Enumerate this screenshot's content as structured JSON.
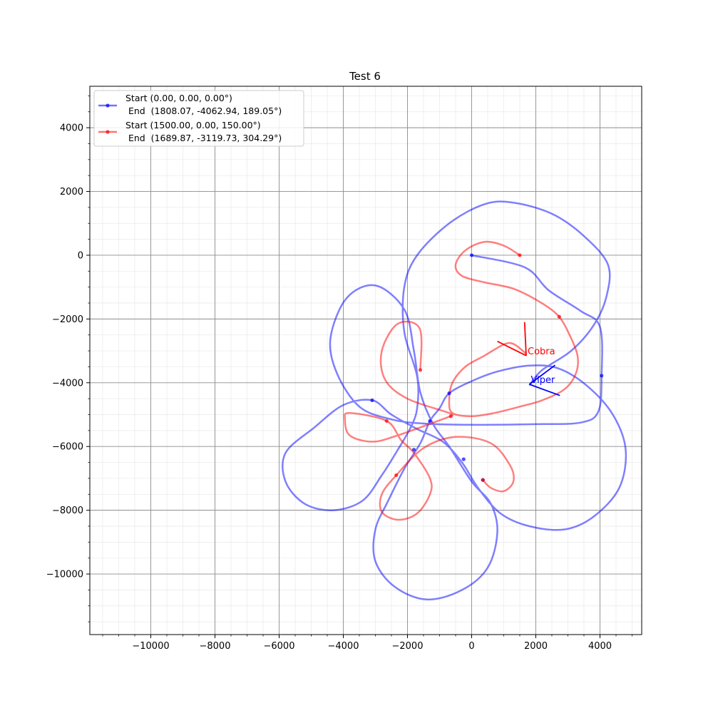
{
  "chart_data": {
    "type": "line",
    "title": "Test 6",
    "xlabel": "",
    "ylabel": "",
    "xlim": [
      -11900,
      5300
    ],
    "ylim": [
      -11900,
      5300
    ],
    "x_ticks": [
      -10000,
      -8000,
      -6000,
      -4000,
      -2000,
      0,
      2000,
      4000
    ],
    "y_ticks": [
      4000,
      2000,
      0,
      -2000,
      -4000,
      -6000,
      -8000,
      -10000
    ],
    "x_tick_labels": [
      "−10000",
      "−8000",
      "−6000",
      "−4000",
      "−2000",
      "0",
      "2000",
      "4000"
    ],
    "y_tick_labels": [
      "4000",
      "2000",
      "0",
      "−2000",
      "−4000",
      "−6000",
      "−8000",
      "−10000"
    ],
    "grid": true,
    "minor_grid": true,
    "legend_position": "top-left",
    "series": [
      {
        "name": "Start (0.00, 0.00, 0.00°)\n End  (1808.07, -4062.94, 189.05°)",
        "legend_line1": "Start (0.00, 0.00, 0.00°)",
        "legend_line2": " End  (1808.07, -4062.94, 189.05°)",
        "color": "#0000ff",
        "points": [
          [
            0,
            0
          ],
          [
            1650,
            -380
          ],
          [
            2400,
            -1100
          ],
          [
            3400,
            -1750
          ],
          [
            4000,
            -2250
          ],
          [
            4050,
            -3780
          ],
          [
            3950,
            -4900
          ],
          [
            3400,
            -5250
          ],
          [
            2000,
            -5300
          ],
          [
            0,
            -5320
          ],
          [
            -1500,
            -5280
          ],
          [
            -2500,
            -5150
          ],
          [
            -3500,
            -4750
          ],
          [
            -4200,
            -3700
          ],
          [
            -4400,
            -2600
          ],
          [
            -3900,
            -1350
          ],
          [
            -3000,
            -950
          ],
          [
            -2100,
            -1700
          ],
          [
            -1800,
            -3000
          ],
          [
            -1600,
            -4300
          ],
          [
            -1200,
            -5300
          ],
          [
            -700,
            -6000
          ],
          [
            0,
            -7100
          ],
          [
            600,
            -7800
          ],
          [
            800,
            -8700
          ],
          [
            500,
            -9800
          ],
          [
            -300,
            -10500
          ],
          [
            -1400,
            -10800
          ],
          [
            -2400,
            -10400
          ],
          [
            -3000,
            -9600
          ],
          [
            -3000,
            -8600
          ],
          [
            -2600,
            -7700
          ],
          [
            -2100,
            -6700
          ],
          [
            -1600,
            -5900
          ],
          [
            -1300,
            -5200
          ],
          [
            -1000,
            -4800
          ],
          [
            -700,
            -4330
          ],
          [
            0,
            -3950
          ],
          [
            800,
            -3650
          ],
          [
            1800,
            -3460
          ],
          [
            2700,
            -3550
          ],
          [
            3600,
            -4100
          ],
          [
            4400,
            -5000
          ],
          [
            4800,
            -6100
          ],
          [
            4600,
            -7300
          ],
          [
            3800,
            -8200
          ],
          [
            2900,
            -8600
          ],
          [
            1800,
            -8500
          ],
          [
            900,
            -8100
          ],
          [
            200,
            -7300
          ],
          [
            -300,
            -6500
          ],
          [
            -900,
            -5850
          ],
          [
            -1700,
            -5450
          ],
          [
            -2500,
            -5000
          ],
          [
            -3100,
            -4550
          ],
          [
            -4000,
            -4700
          ],
          [
            -4900,
            -5400
          ],
          [
            -5800,
            -6200
          ],
          [
            -5800,
            -7100
          ],
          [
            -5200,
            -7800
          ],
          [
            -4300,
            -8000
          ],
          [
            -3400,
            -7700
          ],
          [
            -2800,
            -6900
          ],
          [
            -2300,
            -6100
          ],
          [
            -1900,
            -5400
          ],
          [
            -1700,
            -4800
          ],
          [
            -1700,
            -3800
          ],
          [
            -2100,
            -2400
          ],
          [
            -2100,
            -1000
          ],
          [
            -1700,
            0
          ],
          [
            -700,
            1000
          ],
          [
            400,
            1600
          ],
          [
            1300,
            1650
          ],
          [
            2500,
            1300
          ],
          [
            3500,
            600
          ],
          [
            4250,
            -300
          ],
          [
            4200,
            -1300
          ],
          [
            3800,
            -2200
          ],
          [
            3100,
            -3000
          ],
          [
            2200,
            -3600
          ],
          [
            1808,
            -4063
          ]
        ],
        "markers": [
          [
            0,
            0
          ],
          [
            4050,
            -3780
          ],
          [
            -1300,
            -5200
          ],
          [
            -3100,
            -4550
          ],
          [
            -700,
            -4330
          ],
          [
            -1800,
            -6100
          ],
          [
            -250,
            -6400
          ],
          [
            350,
            -7050
          ]
        ]
      },
      {
        "name": "Start (1500.00, 0.00, 150.00°)\n End  (1689.87, -3119.73, 304.29°)",
        "legend_line1": "Start (1500.00, 0.00, 150.00°)",
        "legend_line2": " End  (1689.87, -3119.73, 304.29°)",
        "color": "#ff0000",
        "points": [
          [
            1500,
            0
          ],
          [
            1000,
            300
          ],
          [
            400,
            420
          ],
          [
            -200,
            150
          ],
          [
            -500,
            -300
          ],
          [
            -300,
            -650
          ],
          [
            400,
            -850
          ],
          [
            1300,
            -1050
          ],
          [
            2100,
            -1450
          ],
          [
            2700,
            -1900
          ],
          [
            3050,
            -2500
          ],
          [
            3300,
            -3150
          ],
          [
            3250,
            -3700
          ],
          [
            2900,
            -4200
          ],
          [
            2200,
            -4550
          ],
          [
            1500,
            -4750
          ],
          [
            700,
            -4950
          ],
          [
            0,
            -5050
          ],
          [
            -600,
            -4950
          ],
          [
            -700,
            -4550
          ],
          [
            -600,
            -4000
          ],
          [
            -200,
            -3500
          ],
          [
            400,
            -3150
          ],
          [
            1000,
            -2800
          ],
          [
            1300,
            -2780
          ],
          [
            1650,
            -3050
          ],
          [
            1690,
            -3120
          ]
        ],
        "markers": [
          [
            1500,
            0
          ],
          [
            2730,
            -1930
          ],
          [
            -1600,
            -3600
          ],
          [
            -650,
            -5050
          ],
          [
            -2650,
            -5200
          ],
          [
            -2350,
            -6900
          ],
          [
            350,
            -7050
          ]
        ]
      }
    ],
    "extra_red_path": [
      [
        -1600,
        -3600
      ],
      [
        -1620,
        -2300
      ],
      [
        -2300,
        -2150
      ],
      [
        -2800,
        -3000
      ],
      [
        -2700,
        -3900
      ],
      [
        -2000,
        -4500
      ],
      [
        -700,
        -4950
      ],
      [
        -650,
        -5050
      ]
    ],
    "extra_red_path2": [
      [
        -650,
        -5050
      ],
      [
        -2300,
        -5650
      ],
      [
        -3100,
        -5850
      ],
      [
        -3800,
        -5650
      ],
      [
        -3950,
        -5150
      ],
      [
        -3800,
        -4950
      ],
      [
        -2650,
        -5200
      ],
      [
        -2200,
        -5800
      ],
      [
        -1800,
        -6200
      ],
      [
        -1300,
        -7000
      ],
      [
        -1300,
        -7500
      ],
      [
        -1700,
        -8100
      ],
      [
        -2300,
        -8300
      ],
      [
        -2800,
        -8050
      ],
      [
        -2800,
        -7500
      ],
      [
        -2350,
        -6900
      ],
      [
        -1500,
        -6050
      ],
      [
        -500,
        -5700
      ],
      [
        600,
        -5900
      ],
      [
        1200,
        -6600
      ],
      [
        1300,
        -7100
      ],
      [
        1000,
        -7400
      ],
      [
        600,
        -7300
      ],
      [
        350,
        -7050
      ]
    ],
    "arrows": [
      {
        "label": "Cobra",
        "color": "#ff0000",
        "x": 1700,
        "y": -3150,
        "tail1": [
          800,
          -2700
        ],
        "tail2": [
          1650,
          -2100
        ]
      },
      {
        "label": "Viper",
        "color": "#0000ff",
        "x": 1800,
        "y": -4050,
        "tail1": [
          2600,
          -3450
        ],
        "tail2": [
          2750,
          -4400
        ]
      }
    ]
  }
}
